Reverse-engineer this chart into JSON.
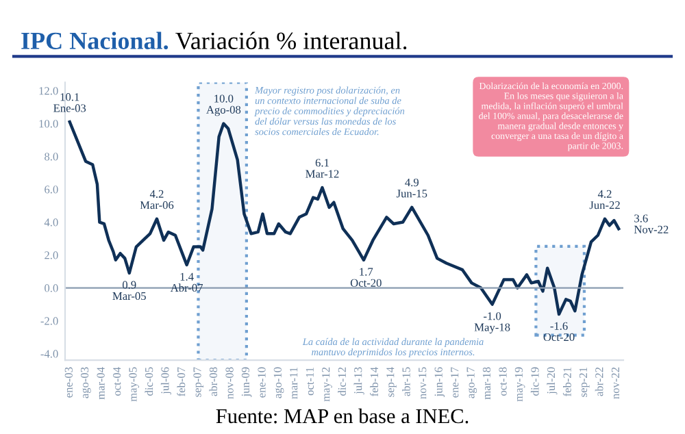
{
  "chart_data": {
    "type": "line",
    "title": "IPC Nacional.",
    "subtitle": "Variación % interanual.",
    "x": [
      "2003-01",
      "2003-08",
      "2003-11",
      "2004-01",
      "2004-02",
      "2004-04",
      "2004-06",
      "2004-08",
      "2004-09",
      "2004-11",
      "2005-01",
      "2005-03",
      "2005-06",
      "2005-09",
      "2005-12",
      "2006-03",
      "2006-06",
      "2006-08",
      "2006-11",
      "2007-02",
      "2007-04",
      "2007-07",
      "2007-10",
      "2007-11",
      "2008-03",
      "2008-06",
      "2008-08",
      "2008-10",
      "2009-02",
      "2009-05",
      "2009-08",
      "2009-11",
      "2010-01",
      "2010-03",
      "2010-06",
      "2010-08",
      "2010-11",
      "2011-01",
      "2011-05",
      "2011-08",
      "2011-11",
      "2012-01",
      "2012-03",
      "2012-06",
      "2012-08",
      "2012-12",
      "2013-04",
      "2013-09",
      "2013-10",
      "2014-01",
      "2014-07",
      "2014-10",
      "2015-02",
      "2015-06",
      "2016-01",
      "2016-05",
      "2016-09",
      "2017-04",
      "2017-08",
      "2017-12",
      "2018-05",
      "2018-10",
      "2019-02",
      "2019-04",
      "2019-08",
      "2019-10",
      "2020-01",
      "2020-03",
      "2020-05",
      "2020-08",
      "2020-10",
      "2021-01",
      "2021-03",
      "2021-05",
      "2021-08",
      "2021-12",
      "2022-03",
      "2022-06",
      "2022-08",
      "2022-10",
      "2022-12"
    ],
    "values": [
      10.1,
      7.7,
      7.5,
      6.3,
      4.0,
      3.9,
      2.9,
      2.2,
      1.7,
      2.1,
      1.8,
      0.9,
      2.5,
      2.9,
      3.3,
      4.2,
      2.9,
      3.4,
      3.2,
      2.1,
      1.4,
      2.5,
      2.5,
      2.3,
      4.8,
      9.2,
      10.0,
      9.7,
      7.8,
      4.5,
      3.3,
      3.4,
      4.5,
      3.3,
      3.3,
      3.9,
      3.4,
      3.3,
      4.3,
      4.5,
      5.5,
      5.4,
      6.1,
      4.9,
      5.2,
      3.6,
      2.9,
      1.7,
      2.0,
      2.9,
      4.3,
      3.9,
      4.0,
      4.9,
      3.2,
      1.8,
      1.5,
      1.1,
      0.3,
      0.0,
      -1.0,
      0.5,
      0.5,
      0.0,
      0.8,
      0.3,
      0.4,
      -0.2,
      1.2,
      0.0,
      -1.6,
      -0.7,
      -0.8,
      -1.4,
      0.8,
      2.8,
      3.2,
      4.2,
      3.8,
      4.1,
      3.6
    ],
    "color": "#0f3057",
    "line_style": "solid",
    "marker": "none",
    "grid": false,
    "legend": false,
    "xlim": [
      "2002-11",
      "2023-02"
    ],
    "xticks": [
      {
        "value": "2003-01",
        "label": "ene-03"
      },
      {
        "value": "2003-08",
        "label": "ago-03"
      },
      {
        "value": "2004-03",
        "label": "mar-04"
      },
      {
        "value": "2004-10",
        "label": "oct-04"
      },
      {
        "value": "2005-05",
        "label": "may-05"
      },
      {
        "value": "2005-12",
        "label": "dic-05"
      },
      {
        "value": "2006-07",
        "label": "jul-06"
      },
      {
        "value": "2007-02",
        "label": "feb-07"
      },
      {
        "value": "2007-09",
        "label": "sep-07"
      },
      {
        "value": "2008-04",
        "label": "abr-08"
      },
      {
        "value": "2008-11",
        "label": "nov-08"
      },
      {
        "value": "2009-06",
        "label": "jun-09"
      },
      {
        "value": "2010-01",
        "label": "ene-10"
      },
      {
        "value": "2010-08",
        "label": "ago-10"
      },
      {
        "value": "2011-03",
        "label": "mar-11"
      },
      {
        "value": "2011-10",
        "label": "oct-11"
      },
      {
        "value": "2012-05",
        "label": "may-12"
      },
      {
        "value": "2012-12",
        "label": "dic-12"
      },
      {
        "value": "2013-07",
        "label": "jul-13"
      },
      {
        "value": "2014-02",
        "label": "feb-14"
      },
      {
        "value": "2014-09",
        "label": "sep-14"
      },
      {
        "value": "2015-04",
        "label": "abr-15"
      },
      {
        "value": "2015-11",
        "label": "nov-15"
      },
      {
        "value": "2016-06",
        "label": "jun-16"
      },
      {
        "value": "2017-01",
        "label": "ene-17"
      },
      {
        "value": "2017-08",
        "label": "ago-17"
      },
      {
        "value": "2018-03",
        "label": "mar-18"
      },
      {
        "value": "2018-10",
        "label": "oct-18"
      },
      {
        "value": "2019-05",
        "label": "may-19"
      },
      {
        "value": "2019-12",
        "label": "dic-19"
      },
      {
        "value": "2020-07",
        "label": "jul-20"
      },
      {
        "value": "2021-02",
        "label": "feb-21"
      },
      {
        "value": "2021-09",
        "label": "sep-21"
      },
      {
        "value": "2022-04",
        "label": "abr-22"
      },
      {
        "value": "2022-11",
        "label": "nov-22"
      }
    ],
    "ylim": [
      -4.4,
      12.5
    ],
    "yticks": [
      {
        "value": -4,
        "label": "-4.0"
      },
      {
        "value": -2,
        "label": "-2.0"
      },
      {
        "value": 0,
        "label": "0.0"
      },
      {
        "value": 2,
        "label": "2.0"
      },
      {
        "value": 4,
        "label": "4.0"
      },
      {
        "value": 6,
        "label": "6.0"
      },
      {
        "value": 8,
        "label": "8.0"
      },
      {
        "value": 10,
        "label": "10.0"
      },
      {
        "value": 12,
        "label": "12.0"
      }
    ],
    "ref_lines": [
      {
        "axis": "y",
        "value": 0,
        "color": "#8a9bb0",
        "line_style": "solid"
      }
    ],
    "bands": [
      {
        "axis": "x",
        "from": "2007-09",
        "to": "2009-06",
        "color": "#6f9fd0",
        "label": "Mayor registro post dolarización, en\nun contexto internacional de suba de\nprecio de commodities y depreciación\ndel dólar versus las monedas de los\nsocios comerciales de Ecuador."
      },
      {
        "axis": "x",
        "from": "2019-12",
        "to": "2021-09",
        "color": "#6f9fd0",
        "label": "La caída de la actividad durante la pandemia\nmantuvo deprimidos los precios internos."
      }
    ],
    "annotations": [
      {
        "text": "10.1\nEne-03",
        "x": "2003-01",
        "y": 10.1
      },
      {
        "text": "0.9\nMar-05",
        "x": "2005-03",
        "y": 0.9
      },
      {
        "text": "4.2\nMar-06",
        "x": "2006-03",
        "y": 4.2
      },
      {
        "text": "1.4\nAbr-07",
        "x": "2007-04",
        "y": 1.4
      },
      {
        "text": "10.0\nAgo-08",
        "x": "2008-08",
        "y": 10.0
      },
      {
        "text": "6.1\nMar-12",
        "x": "2012-03",
        "y": 6.1
      },
      {
        "text": "1.7\nOct-20",
        "x": "2013-10",
        "y": 1.7
      },
      {
        "text": "4.9\nJun-15",
        "x": "2015-06",
        "y": 4.9
      },
      {
        "text": "-1.0\nMay-18",
        "x": "2018-05",
        "y": -1.0
      },
      {
        "text": "-1.6\nOct-20",
        "x": "2020-10",
        "y": -1.6
      },
      {
        "text": "4.2\nJun-22",
        "x": "2022-06",
        "y": 4.2
      },
      {
        "text": "3.6\nNov-22",
        "x": "2022-12",
        "y": 3.6
      },
      "Dolarización de la economía en 2000.\nEn los meses que siguieron a la\nmedida, la inflación superó el umbral\ndel 100% anual, para desacelerarse de\nmanera gradual desde entonces y\nconverger a una tasa de un dígito a\npartir de 2003.",
      "Fuente: MAP en base a INEC."
    ]
  }
}
